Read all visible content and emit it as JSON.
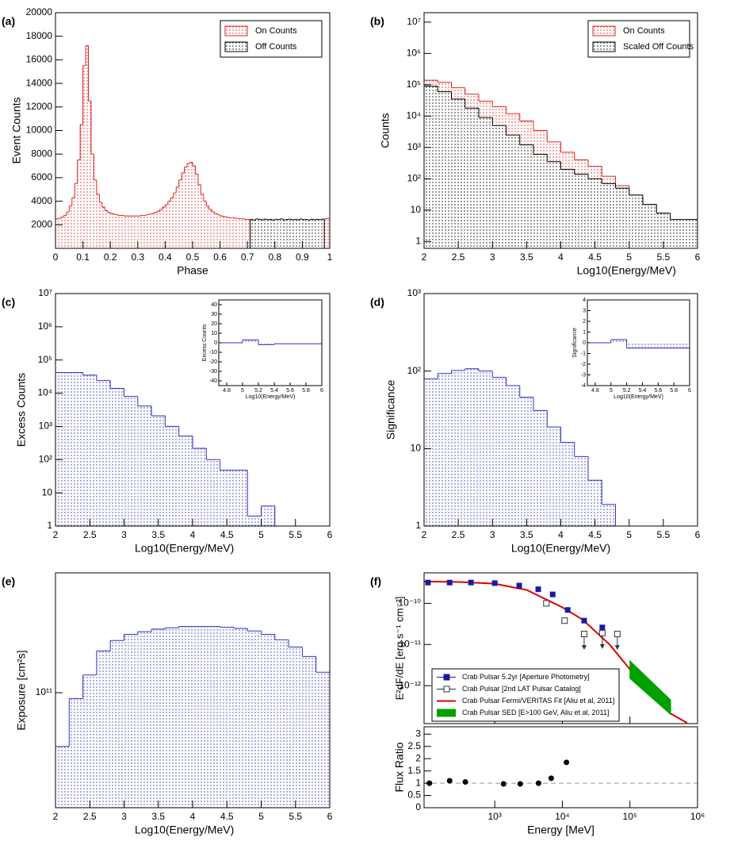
{
  "chart_data": [
    {
      "type": "histogram",
      "panel": "(a)",
      "xlabel": "Phase",
      "ylabel": "Event Counts",
      "xlim": [
        0,
        1
      ],
      "ylim": [
        0,
        20000
      ],
      "xticks": [
        0,
        0.1,
        0.2,
        0.3,
        0.4,
        0.5,
        0.6,
        0.7,
        0.8,
        0.9,
        1
      ],
      "yticks": [
        2000,
        4000,
        6000,
        8000,
        10000,
        12000,
        14000,
        16000,
        18000,
        20000
      ],
      "legend": "upper right",
      "bins": [
        0,
        0.01,
        0.02,
        0.03,
        0.04,
        0.05,
        0.06,
        0.07,
        0.08,
        0.09,
        0.1,
        0.11,
        0.12,
        0.13,
        0.14,
        0.15,
        0.16,
        0.17,
        0.18,
        0.19,
        0.2,
        0.21,
        0.22,
        0.23,
        0.24,
        0.25,
        0.26,
        0.27,
        0.28,
        0.29,
        0.3,
        0.31,
        0.32,
        0.33,
        0.34,
        0.35,
        0.36,
        0.37,
        0.38,
        0.39,
        0.4,
        0.41,
        0.42,
        0.43,
        0.44,
        0.45,
        0.46,
        0.47,
        0.48,
        0.49,
        0.5,
        0.51,
        0.52,
        0.53,
        0.54,
        0.55,
        0.56,
        0.57,
        0.58,
        0.59,
        0.6,
        0.61,
        0.62,
        0.63,
        0.64,
        0.65,
        0.66,
        0.67,
        0.68,
        0.69,
        0.7,
        0.71,
        0.72,
        0.73,
        0.74,
        0.75,
        0.76,
        0.77,
        0.78,
        0.79,
        0.8,
        0.81,
        0.82,
        0.83,
        0.84,
        0.85,
        0.86,
        0.87,
        0.88,
        0.89,
        0.9,
        0.91,
        0.92,
        0.93,
        0.94,
        0.95,
        0.96,
        0.97,
        0.98,
        0.99,
        1
      ],
      "series": [
        {
          "name": "On Counts",
          "color": "#e02020",
          "values": [
            2500,
            2550,
            2650,
            2800,
            3100,
            3600,
            4300,
            5500,
            7500,
            10500,
            15500,
            17200,
            12500,
            8000,
            5800,
            4600,
            3900,
            3500,
            3200,
            3050,
            2950,
            2900,
            2850,
            2800,
            2800,
            2750,
            2750,
            2750,
            2750,
            2750,
            2750,
            2800,
            2800,
            2850,
            2900,
            2950,
            3050,
            3150,
            3300,
            3500,
            3700,
            4000,
            4300,
            4700,
            5200,
            5800,
            6400,
            6900,
            7200,
            7300,
            7000,
            6300,
            5400,
            4600,
            4000,
            3600,
            3300,
            3100,
            2950,
            2850,
            2750,
            2700,
            2650,
            2600,
            2600,
            2550,
            2550,
            2500,
            2500,
            2450,
            2450,
            null,
            null,
            null,
            null,
            null,
            null,
            null,
            null,
            null,
            null,
            null,
            null,
            null,
            null,
            null,
            null,
            null,
            null,
            null,
            null,
            null,
            null,
            null,
            null,
            null,
            null,
            null,
            2500,
            2550
          ]
        },
        {
          "name": "Off Counts",
          "color": "#000000",
          "values": [
            null,
            null,
            null,
            null,
            null,
            null,
            null,
            null,
            null,
            null,
            null,
            null,
            null,
            null,
            null,
            null,
            null,
            null,
            null,
            null,
            null,
            null,
            null,
            null,
            null,
            null,
            null,
            null,
            null,
            null,
            null,
            null,
            null,
            null,
            null,
            null,
            null,
            null,
            null,
            null,
            null,
            null,
            null,
            null,
            null,
            null,
            null,
            null,
            null,
            null,
            null,
            null,
            null,
            null,
            null,
            null,
            null,
            null,
            null,
            null,
            null,
            null,
            null,
            null,
            null,
            null,
            null,
            null,
            null,
            null,
            null,
            2450,
            2400,
            2500,
            2450,
            2420,
            2480,
            2430,
            2460,
            2400,
            2470,
            2440,
            2500,
            2410,
            2450,
            2480,
            2430,
            2460,
            2420,
            2490,
            2440,
            2450,
            2410,
            2470,
            2430,
            2460,
            2440,
            2480,
            null,
            null
          ]
        }
      ]
    },
    {
      "type": "histogram",
      "panel": "(b)",
      "xlabel": "Log10(Energy/MeV)",
      "ylabel": "Counts",
      "log_y": true,
      "xlim": [
        2,
        6
      ],
      "ylim": [
        0.6,
        20000000
      ],
      "xticks": [
        2,
        2.5,
        3,
        3.5,
        4,
        4.5,
        5,
        5.5,
        6
      ],
      "yticks": [
        1,
        10,
        {
          "value": 100,
          "label": "10²"
        },
        {
          "value": 1000,
          "label": "10³"
        },
        {
          "value": 10000,
          "label": "10⁴"
        },
        {
          "value": 100000,
          "label": "10⁵"
        },
        {
          "value": 1000000,
          "label": "10⁶"
        },
        {
          "value": 10000000,
          "label": "10⁷"
        }
      ],
      "legend": "upper right",
      "bins": [
        2,
        2.2,
        2.4,
        2.6,
        2.8,
        3,
        3.2,
        3.4,
        3.6,
        3.8,
        4,
        4.2,
        4.4,
        4.6,
        4.8,
        5,
        5.2,
        5.4,
        5.6,
        5.8,
        6
      ],
      "series": [
        {
          "name": "On Counts",
          "color": "#e02020",
          "values": [
            140000,
            120000,
            80000,
            50000,
            30000,
            20000,
            12000,
            7000,
            3500,
            1500,
            700,
            400,
            250,
            120,
            60,
            30,
            15,
            7,
            4,
            3
          ]
        },
        {
          "name": "Scaled Off Counts",
          "color": "#000000",
          "values": [
            90000,
            60000,
            35000,
            18000,
            9000,
            5000,
            2500,
            1200,
            600,
            350,
            200,
            140,
            100,
            70,
            50,
            30,
            15,
            8,
            5,
            5
          ]
        }
      ]
    },
    {
      "type": "histogram",
      "panel": "(c)",
      "xlabel": "Log10(Energy/MeV)",
      "ylabel": "Excess Counts",
      "log_y": true,
      "xlim": [
        2,
        6
      ],
      "ylim": [
        1,
        10000000
      ],
      "xticks": [
        2,
        2.5,
        3,
        3.5,
        4,
        4.5,
        5,
        5.5,
        6
      ],
      "yticks": [
        1,
        10,
        {
          "value": 100,
          "label": "10²"
        },
        {
          "value": 1000,
          "label": "10³"
        },
        {
          "value": 10000,
          "label": "10⁴"
        },
        {
          "value": 100000,
          "label": "10⁵"
        },
        {
          "value": 1000000,
          "label": "10⁶"
        },
        {
          "value": 10000000,
          "label": "10⁷"
        }
      ],
      "bins": [
        2,
        2.2,
        2.4,
        2.6,
        2.8,
        3,
        3.2,
        3.4,
        3.6,
        3.8,
        4,
        4.2,
        4.4,
        4.6,
        4.8,
        5,
        5.2
      ],
      "series": [
        {
          "color": "#3030c0",
          "values": [
            42000,
            42000,
            35000,
            24000,
            14000,
            8000,
            4100,
            2100,
            1000,
            510,
            220,
            100,
            48,
            48,
            2,
            4
          ]
        }
      ]
    },
    {
      "type": "histogram",
      "xlabel": "Log10(Energy/MeV)",
      "ylabel": "Excess Counts",
      "xlim": [
        4.7,
        6
      ],
      "ylim": [
        -45,
        45
      ],
      "xticks": [
        4.8,
        5,
        5.2,
        5.4,
        5.6,
        5.8,
        6
      ],
      "yticks": [
        -40,
        -30,
        -20,
        -10,
        0,
        10,
        20,
        30,
        40
      ],
      "bins": [
        4.7,
        5,
        5.2,
        5.4,
        6
      ],
      "series": [
        {
          "color": "#3030c0",
          "values": [
            0,
            3,
            -2,
            -1
          ]
        }
      ]
    },
    {
      "type": "histogram",
      "panel": "(d)",
      "xlabel": "Log10(Energy/MeV)",
      "ylabel": "Significance",
      "log_y": true,
      "xlim": [
        2,
        6
      ],
      "ylim": [
        1,
        1000
      ],
      "xticks": [
        2,
        2.5,
        3,
        3.5,
        4,
        4.5,
        5,
        5.5,
        6
      ],
      "yticks": [
        1,
        10,
        {
          "value": 100,
          "label": "10²"
        },
        {
          "value": 1000,
          "label": "10³"
        }
      ],
      "bins": [
        2,
        2.2,
        2.4,
        2.6,
        2.8,
        3,
        3.2,
        3.4,
        3.6,
        3.8,
        4,
        4.2,
        4.4,
        4.6,
        4.8
      ],
      "series": [
        {
          "color": "#3030c0",
          "values": [
            79,
            93,
            102,
            107,
            100,
            83,
            65,
            46,
            31,
            19,
            12,
            7.9,
            3.9,
            1.9
          ]
        }
      ]
    },
    {
      "type": "histogram",
      "xlabel": "Log10(Energy/MeV)",
      "ylabel": "Significance",
      "xlim": [
        4.7,
        6
      ],
      "ylim": [
        -4,
        4
      ],
      "xticks": [
        4.8,
        5,
        5.2,
        5.4,
        5.6,
        5.8,
        6
      ],
      "yticks": [
        -4,
        -3,
        -2,
        -1,
        0,
        1,
        2,
        3,
        4
      ],
      "bins": [
        4.7,
        5,
        5.2,
        6
      ],
      "series": [
        {
          "color": "#3030c0",
          "values": [
            0,
            0.3,
            -0.5
          ]
        }
      ]
    },
    {
      "type": "histogram",
      "panel": "(e)",
      "xlabel": "Log10(Energy/MeV)",
      "ylabel": "Exposure [cm²s]",
      "log_y": true,
      "xlim": [
        2,
        6
      ],
      "ylim": [
        36000000000,
        290000000000
      ],
      "xticks": [
        2,
        2.5,
        3,
        3.5,
        4,
        4.5,
        5,
        5.5,
        6
      ],
      "yticks": [
        {
          "value": 100000000000,
          "label": "10¹¹"
        }
      ],
      "bins": [
        2,
        2.2,
        2.4,
        2.6,
        2.8,
        3,
        3.2,
        3.4,
        3.6,
        3.8,
        4,
        4.2,
        4.4,
        4.6,
        4.8,
        5,
        5.2,
        5.4,
        5.6,
        5.8,
        6
      ],
      "series": [
        {
          "color": "#3030c0",
          "values": [
            62000000000,
            95000000000,
            117000000000,
            145000000000,
            159000000000,
            168000000000,
            172000000000,
            176000000000,
            178000000000,
            180000000000,
            180000000000,
            180000000000,
            179000000000,
            177000000000,
            173000000000,
            168000000000,
            160000000000,
            150000000000,
            138000000000,
            120000000000
          ]
        }
      ]
    },
    {
      "type": "scatter",
      "panel": "(f)",
      "ylabel": "E²dF/dE [erg s⁻¹ cm⁻²]",
      "log_x": true,
      "log_y": true,
      "xlim": [
        90,
        1000000
      ],
      "ylim": [
        1.2e-13,
        5.5e-10
      ],
      "xticks": [
        1000,
        10000,
        100000,
        1000000
      ],
      "xtick_labels": false,
      "yticks": [
        {
          "value": 1e-12,
          "label": "10⁻¹²"
        },
        {
          "value": 1e-11,
          "label": "10⁻¹¹"
        },
        {
          "value": 1e-10,
          "label": "10⁻¹⁰"
        }
      ],
      "legend": "lower left",
      "series": [
        {
          "name": "Crab Pulsar 5.2yr [Aperture Photometry]",
          "style": "marker",
          "marker": "filled-square",
          "color": "#1a1aa0",
          "x": [
            103,
            215,
            445,
            1000,
            2300,
            4400,
            7200,
            12000,
            21000,
            39000
          ],
          "values": [
            3.2e-10,
            3.2e-10,
            3.2e-10,
            3.1e-10,
            2.7e-10,
            2.2e-10,
            1.65e-10,
            6.9e-11,
            3.8e-11,
            2.6e-11
          ]
        },
        {
          "name": "Crab Pulsar [2nd LAT Pulsar Catalog]",
          "style": "marker",
          "marker": "open-square",
          "color": "#333333",
          "x": [
            5800,
            10800,
            21000,
            39000,
            65000
          ],
          "values": [
            1e-10,
            3.8e-11,
            1.8e-11,
            1.9e-11,
            1.8e-11
          ],
          "upper_limits": [
            false,
            false,
            true,
            true,
            true
          ]
        },
        {
          "name": "Crab Pulsar Fermi/VERITAS Fit [Aliu et al, 2011]",
          "style": "line",
          "color": "#e00000",
          "x": [
            90,
            300,
            1000,
            3000,
            10000,
            20000,
            50000,
            100000,
            200000,
            400000,
            700000
          ],
          "values": [
            3.4e-10,
            3.3e-10,
            3e-10,
            2.1e-10,
            8e-11,
            4e-11,
            1e-11,
            2.5e-12,
            7e-13,
            2.1e-13,
            1.25e-13
          ]
        },
        {
          "name": "Crab Pulsar SED [E>100 GeV, Aliu et al, 2011]",
          "style": "band",
          "color": "#00a000",
          "x": [
            100000,
            400000
          ],
          "values_low": [
            1.5e-12,
            2e-13
          ],
          "values_high": [
            4e-12,
            4.5e-13
          ]
        }
      ]
    },
    {
      "type": "scatter",
      "xlabel": "Energy [MeV]",
      "ylabel": "Flux Ratio",
      "log_x": true,
      "xlim": [
        90,
        1000000
      ],
      "ylim": [
        0,
        3.3
      ],
      "xticks": [
        {
          "value": 1000,
          "label": "10³"
        },
        {
          "value": 10000,
          "label": "10⁴"
        },
        {
          "value": 100000,
          "label": "10⁵"
        },
        {
          "value": 1000000,
          "label": "10⁶"
        }
      ],
      "yticks": [
        0,
        0.5,
        1,
        1.5,
        2,
        2.5,
        3
      ],
      "ref_line": 1,
      "series": [
        {
          "style": "marker",
          "marker": "circle",
          "color": "#000000",
          "x": [
            108,
            215,
            367,
            1350,
            2380,
            4440,
            6850,
            11500
          ],
          "values": [
            1.0,
            1.1,
            1.05,
            0.97,
            0.97,
            1.0,
            1.2,
            1.85
          ]
        }
      ]
    }
  ]
}
